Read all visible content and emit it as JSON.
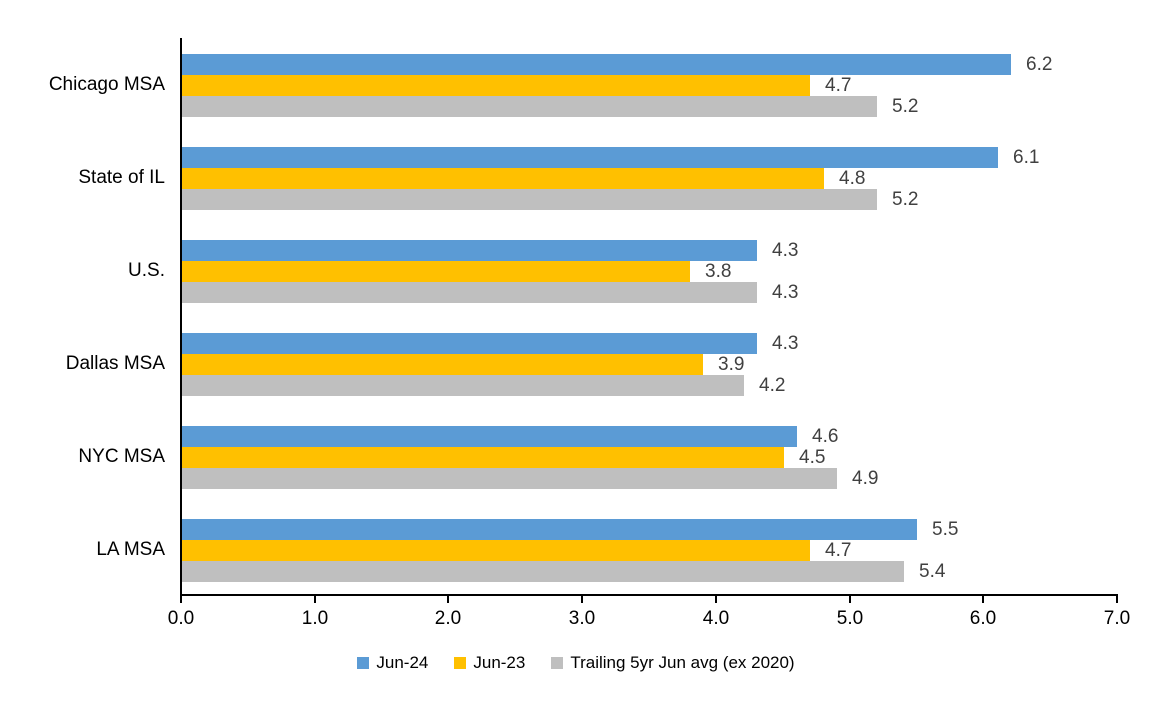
{
  "chart_data": {
    "type": "bar",
    "orientation": "horizontal",
    "title": "",
    "xlabel": "",
    "ylabel": "",
    "categories": [
      "Chicago MSA",
      "State of IL",
      "U.S.",
      "Dallas MSA",
      "NYC MSA",
      "LA MSA"
    ],
    "series": [
      {
        "name": "Jun-24",
        "color": "#5B9BD5",
        "values": [
          6.2,
          6.1,
          4.3,
          4.3,
          4.6,
          5.5
        ]
      },
      {
        "name": "Jun-23",
        "color": "#FFC000",
        "values": [
          4.7,
          4.8,
          3.8,
          3.9,
          4.5,
          4.7
        ]
      },
      {
        "name": "Trailing 5yr Jun avg (ex 2020)",
        "color": "#BFBFBF",
        "values": [
          5.2,
          5.2,
          4.3,
          4.2,
          4.9,
          5.4
        ]
      }
    ],
    "data_labels": [
      [
        "6.2",
        "4.7",
        "5.2"
      ],
      [
        "6.1",
        "4.8",
        "5.2"
      ],
      [
        "4.3",
        "3.8",
        "4.3"
      ],
      [
        "4.3",
        "3.9",
        "4.2"
      ],
      [
        "4.6",
        "4.5",
        "4.9"
      ],
      [
        "5.5",
        "4.7",
        "5.4"
      ]
    ],
    "xlim": [
      0,
      7
    ],
    "x_ticks": [
      "0.0",
      "1.0",
      "2.0",
      "3.0",
      "4.0",
      "5.0",
      "6.0",
      "7.0"
    ],
    "grid": false,
    "legend_position": "bottom"
  },
  "colors": {
    "axis": "#000000",
    "data_label": "#404040",
    "background": "#FFFFFF"
  }
}
